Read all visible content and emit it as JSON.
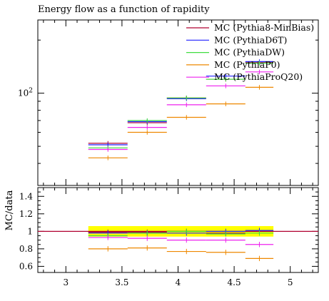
{
  "chart_data": [
    {
      "type": "line",
      "panel": "main",
      "title": "Energy flow as a function of rapidity",
      "xlabel": "",
      "ylabel": "",
      "yscale": "log",
      "xlim": [
        2.75,
        5.25
      ],
      "ylim": [
        30,
        260
      ],
      "y_tick_labels": [
        {
          "value": 100,
          "base": "10",
          "exp": "2"
        }
      ],
      "legend_position": "top-right",
      "bin_edges": [
        3.2,
        3.55,
        3.9,
        4.25,
        4.6,
        4.85
      ],
      "bin_centers": [
        3.375,
        3.725,
        4.075,
        4.425,
        4.725
      ],
      "series": [
        {
          "name": "MC (Pythia8-MinBias)",
          "color": "#b00030",
          "values": [
            52,
            68,
            94,
            120,
            150
          ]
        },
        {
          "name": "MC (PythiaD6T)",
          "color": "#2020ff",
          "values": [
            51,
            69,
            93,
            125,
            151
          ]
        },
        {
          "name": "MC (PythiaDW)",
          "color": "#40dd40",
          "values": [
            49,
            70,
            94,
            120,
            148
          ]
        },
        {
          "name": "MC (PythiaP0)",
          "color": "#ee8800",
          "values": [
            43,
            60,
            73,
            87,
            108
          ]
        },
        {
          "name": "MC (PythiaProQ20)",
          "color": "#ee22ee",
          "values": [
            48,
            64,
            86,
            110,
            132
          ]
        }
      ]
    },
    {
      "type": "line",
      "panel": "ratio",
      "xlabel": "",
      "ylabel": "MC/data",
      "xlim": [
        2.75,
        5.25
      ],
      "ylim": [
        0.53,
        1.5
      ],
      "y_ticks": [
        0.6,
        0.8,
        1,
        1.2,
        1.4
      ],
      "y_tick_labels": [
        "0.6",
        "0.8",
        "1",
        "1.2",
        "1.4"
      ],
      "x_ticks": [
        3,
        3.5,
        4,
        4.5,
        5
      ],
      "x_tick_labels": [
        "3",
        "3.5",
        "4",
        "4.5",
        "5"
      ],
      "reference_line": 1,
      "band": {
        "color": "#ffff00",
        "lower": 0.94,
        "upper": 1.06,
        "x_range": [
          3.2,
          4.85
        ]
      },
      "bin_edges": [
        3.2,
        3.55,
        3.9,
        4.25,
        4.6,
        4.85
      ],
      "bin_centers": [
        3.375,
        3.725,
        4.075,
        4.425,
        4.725
      ],
      "series": [
        {
          "name": "MC (Pythia8-MinBias)",
          "color": "#b00030",
          "values": [
            0.99,
            0.99,
            1.0,
            0.98,
            1.0
          ]
        },
        {
          "name": "MC (PythiaD6T)",
          "color": "#2020ff",
          "values": [
            0.98,
            0.98,
            0.98,
            1.0,
            1.01
          ]
        },
        {
          "name": "MC (PythiaDW)",
          "color": "#40dd40",
          "values": [
            0.95,
            0.98,
            1.0,
            0.97,
            0.98
          ]
        },
        {
          "name": "MC (PythiaP0)",
          "color": "#ee8800",
          "values": [
            0.8,
            0.81,
            0.77,
            0.76,
            0.69
          ]
        },
        {
          "name": "MC (PythiaProQ20)",
          "color": "#ee22ee",
          "values": [
            0.93,
            0.92,
            0.9,
            0.9,
            0.85
          ]
        }
      ]
    }
  ]
}
